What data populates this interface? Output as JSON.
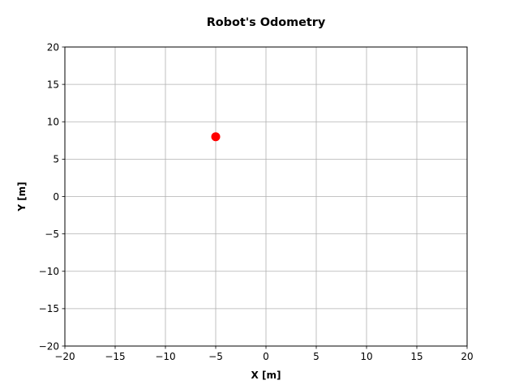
{
  "chart_data": {
    "type": "scatter",
    "title": "Robot's Odometry",
    "xlabel": "X [m]",
    "ylabel": "Y [m]",
    "xlim": [
      -20,
      20
    ],
    "ylim": [
      -20,
      20
    ],
    "xticks": [
      -20,
      -15,
      -10,
      -5,
      0,
      5,
      10,
      15,
      20
    ],
    "yticks": [
      -20,
      -15,
      -10,
      -5,
      0,
      5,
      10,
      15,
      20
    ],
    "xtick_labels": [
      "−20",
      "−15",
      "−10",
      "−5",
      "0",
      "5",
      "10",
      "15",
      "20"
    ],
    "ytick_labels": [
      "−20",
      "−15",
      "−10",
      "−5",
      "0",
      "5",
      "10",
      "15",
      "20"
    ],
    "grid": true,
    "series": [
      {
        "color": "#ff0000",
        "marker": "circle",
        "points": [
          {
            "x": -5,
            "y": 8
          }
        ]
      }
    ]
  }
}
